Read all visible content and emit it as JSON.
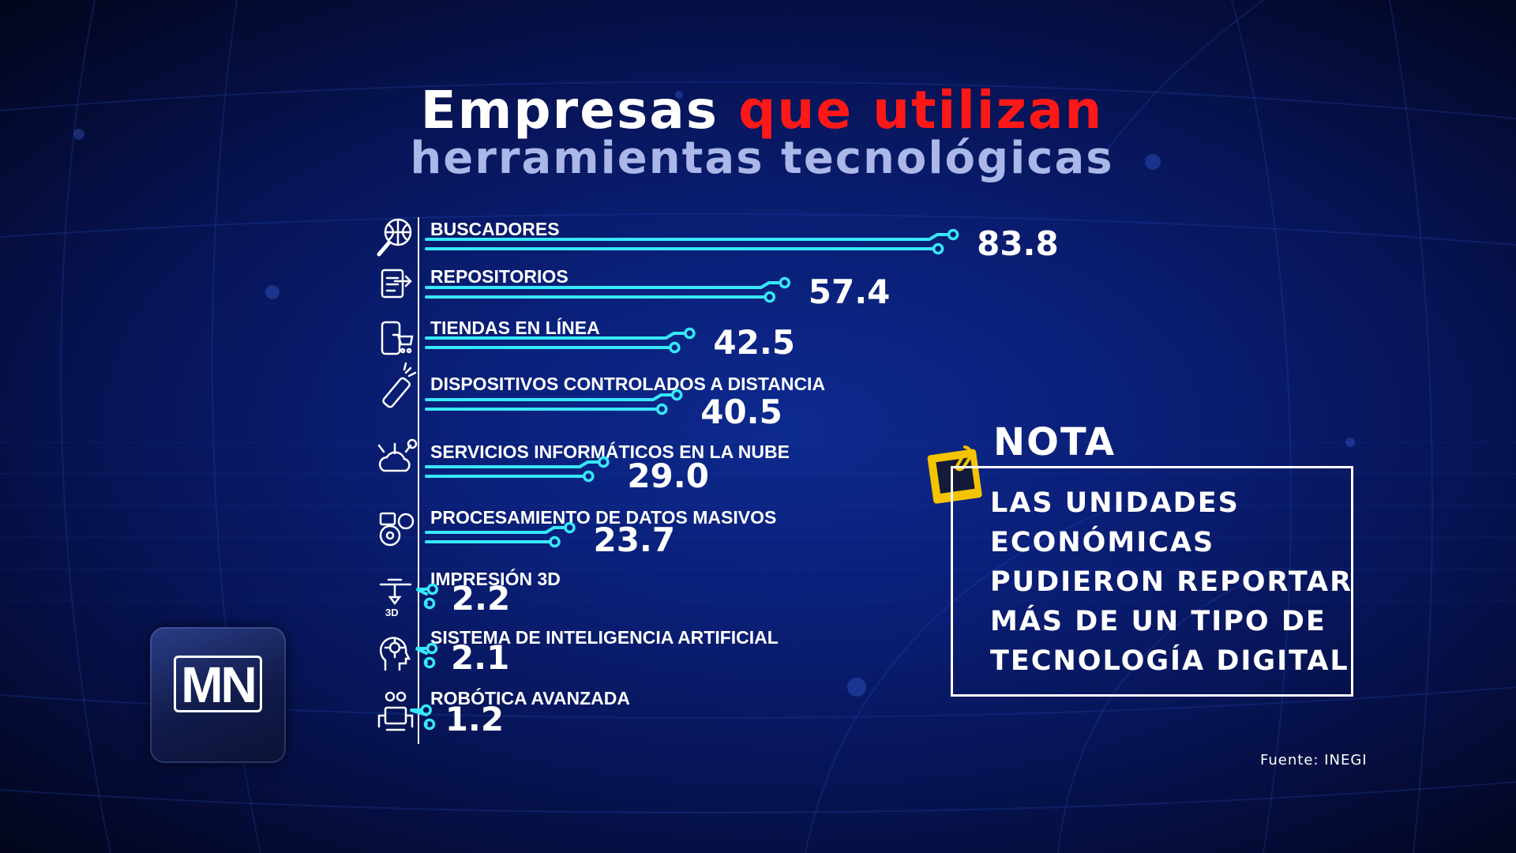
{
  "title": {
    "part1": "Empresas",
    "part2": "que utilizan",
    "line2": "herramientas tecnológicas"
  },
  "colors": {
    "accent_red": "#ff1818",
    "bar": "#37e8ff",
    "background": "#0a1f78"
  },
  "chart_data": {
    "type": "bar",
    "orientation": "horizontal",
    "categories": [
      "BUSCADORES",
      "REPOSITORIOS",
      "TIENDAS EN LÍNEA",
      "DISPOSITIVOS CONTROLADOS A DISTANCIA",
      "SERVICIOS INFORMÁTICOS EN LA NUBE",
      "PROCESAMIENTO DE DATOS MASIVOS",
      "IMPRESIÓN 3D",
      "SISTEMA DE INTELIGENCIA ARTIFICIAL",
      "ROBÓTICA AVANZADA"
    ],
    "values": [
      83.8,
      57.4,
      42.5,
      40.5,
      29.0,
      23.7,
      2.2,
      2.1,
      1.2
    ],
    "labels": [
      "83.8",
      "57.4",
      "42.5",
      "40.5",
      "29.0",
      "23.7",
      "2.2",
      "2.1",
      "1.2"
    ],
    "icons": [
      "globe-search-icon",
      "repository-icon",
      "mobile-cart-icon",
      "remote-control-icon",
      "cloud-network-icon",
      "gears-icon",
      "printer-3d-icon",
      "ai-head-icon",
      "robot-icon"
    ],
    "icon_label_3d": "3D",
    "xlim": [
      0,
      100
    ],
    "grid": false
  },
  "logo": {
    "text": "MN"
  },
  "nota": {
    "title": "NOTA",
    "lines": [
      "LAS UNIDADES",
      "ECONÓMICAS",
      "PUDIERON REPORTAR",
      "MÁS DE UN TIPO DE",
      "TECNOLOGÍA DIGITAL"
    ]
  },
  "source": "Fuente: INEGI"
}
